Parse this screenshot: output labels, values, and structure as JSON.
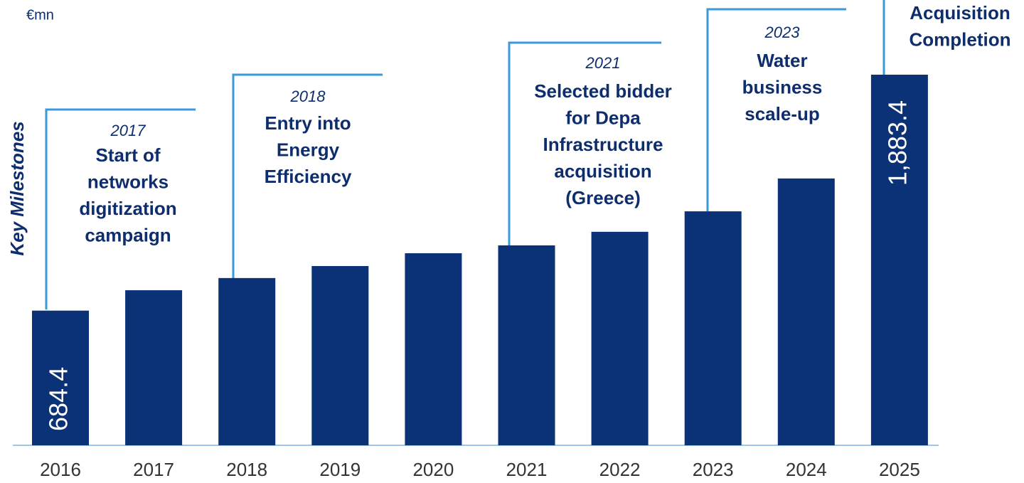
{
  "chart_data": {
    "type": "bar",
    "unit_label": "€mn",
    "y_label": "Key Milestones",
    "categories": [
      "2016",
      "2017",
      "2018",
      "2019",
      "2020",
      "2021",
      "2022",
      "2023",
      "2024",
      "2025"
    ],
    "values": [
      684.4,
      788,
      850,
      911,
      976,
      1016,
      1085,
      1189,
      1356,
      1883.4
    ],
    "value_labels": [
      "684.4",
      null,
      null,
      null,
      null,
      null,
      null,
      null,
      null,
      "1,883.4"
    ],
    "color": "#0b3276",
    "annotations": [
      {
        "year": "2017",
        "text": [
          "Start of",
          "networks",
          "digitization",
          "campaign"
        ]
      },
      {
        "year": "2018",
        "text": [
          "Entry into",
          "Energy",
          "Efficiency"
        ]
      },
      {
        "year": "2021",
        "text": [
          "Selected bidder",
          "for Depa",
          "Infrastructure",
          "acquisition",
          "(Greece)"
        ]
      },
      {
        "year": "2023",
        "text": [
          "Water",
          "business",
          "scale-up"
        ]
      },
      {
        "text": [
          "Acquisition",
          "Completion"
        ]
      }
    ]
  }
}
